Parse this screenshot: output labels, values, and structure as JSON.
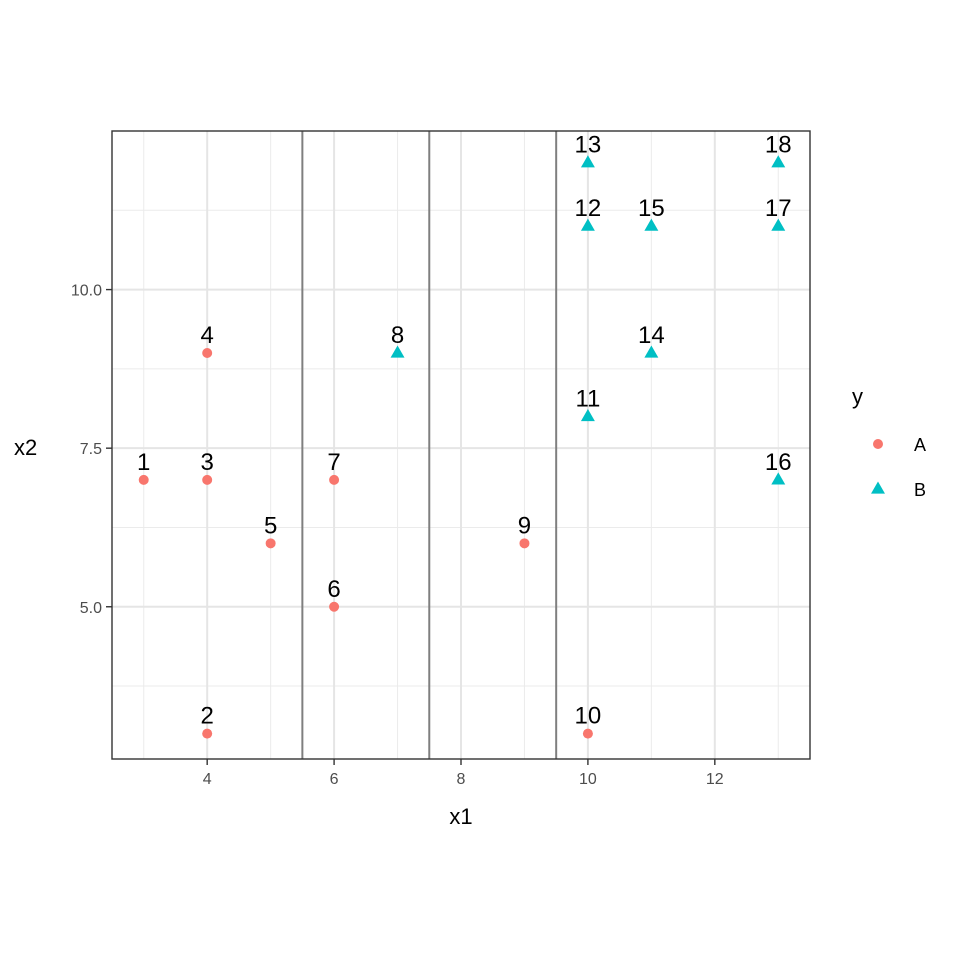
{
  "chart_data": {
    "type": "scatter",
    "xlabel": "x1",
    "ylabel": "x2",
    "xlim": [
      2.5,
      13.5
    ],
    "ylim": [
      2.6,
      12.5
    ],
    "x_ticks": [
      4,
      6,
      8,
      10,
      12
    ],
    "x_tick_labels": [
      "4",
      "6",
      "8",
      "10",
      "12"
    ],
    "y_ticks": [
      5.0,
      7.5,
      10.0
    ],
    "y_tick_labels": [
      "5.0",
      "7.5",
      "10.0"
    ],
    "grid": true,
    "vertical_lines": [
      5.5,
      7.5,
      9.5
    ],
    "legend": {
      "title": "y",
      "placement": "right",
      "entries": [
        {
          "label": "A",
          "shape": "circle",
          "color": "#F8766D"
        },
        {
          "label": "B",
          "shape": "triangle",
          "color": "#00BFC4"
        }
      ]
    },
    "points": [
      {
        "label": "1",
        "x": 3,
        "y": 7,
        "class": "A"
      },
      {
        "label": "2",
        "x": 4,
        "y": 3,
        "class": "A"
      },
      {
        "label": "3",
        "x": 4,
        "y": 7,
        "class": "A"
      },
      {
        "label": "4",
        "x": 4,
        "y": 9,
        "class": "A"
      },
      {
        "label": "5",
        "x": 5,
        "y": 6,
        "class": "A"
      },
      {
        "label": "6",
        "x": 6,
        "y": 5,
        "class": "A"
      },
      {
        "label": "7",
        "x": 6,
        "y": 7,
        "class": "A"
      },
      {
        "label": "8",
        "x": 7,
        "y": 9,
        "class": "B"
      },
      {
        "label": "9",
        "x": 9,
        "y": 6,
        "class": "A"
      },
      {
        "label": "10",
        "x": 10,
        "y": 3,
        "class": "A"
      },
      {
        "label": "11",
        "x": 10,
        "y": 8,
        "class": "B"
      },
      {
        "label": "12",
        "x": 10,
        "y": 11,
        "class": "B"
      },
      {
        "label": "13",
        "x": 10,
        "y": 12,
        "class": "B"
      },
      {
        "label": "14",
        "x": 11,
        "y": 9,
        "class": "B"
      },
      {
        "label": "15",
        "x": 11,
        "y": 11,
        "class": "B"
      },
      {
        "label": "16",
        "x": 13,
        "y": 7,
        "class": "B"
      },
      {
        "label": "17",
        "x": 13,
        "y": 11,
        "class": "B"
      },
      {
        "label": "18",
        "x": 13,
        "y": 12,
        "class": "B"
      }
    ]
  }
}
